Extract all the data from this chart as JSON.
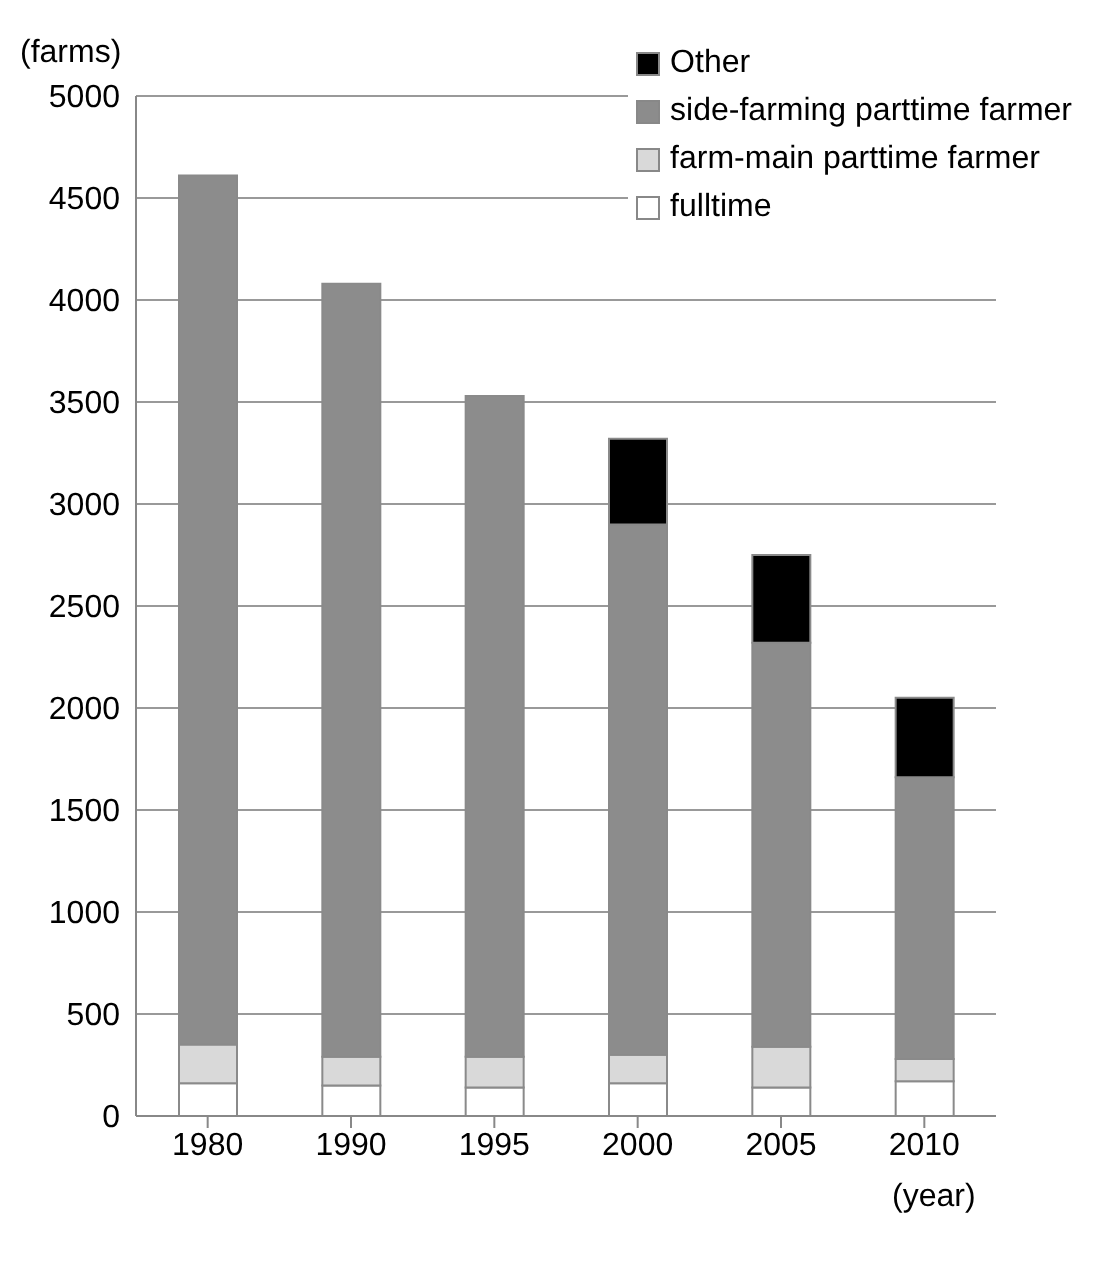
{
  "chart_data": {
    "type": "bar",
    "stacked": true,
    "ylabel": "(farms)",
    "xlabel": "(year)",
    "categories": [
      "1980",
      "1990",
      "1995",
      "2000",
      "2005",
      "2010"
    ],
    "series": [
      {
        "name": "fulltime",
        "color": "#ffffff",
        "values": [
          160,
          150,
          140,
          160,
          140,
          170
        ]
      },
      {
        "name": "farm-main parttime farmer",
        "color": "#d9d9d9",
        "values": [
          190,
          140,
          150,
          140,
          200,
          110
        ]
      },
      {
        "name": "side-farming parttime farmer",
        "color": "#8c8c8c",
        "values": [
          4260,
          3790,
          3240,
          2600,
          1980,
          1380
        ]
      },
      {
        "name": "Other",
        "color": "#000000",
        "values": [
          0,
          0,
          0,
          420,
          430,
          390
        ]
      }
    ],
    "ylim": [
      0,
      5000
    ],
    "yticks": [
      0,
      500,
      1000,
      1500,
      2000,
      2500,
      3000,
      3500,
      4000,
      4500,
      5000
    ],
    "grid": "y",
    "legend": "top right"
  }
}
